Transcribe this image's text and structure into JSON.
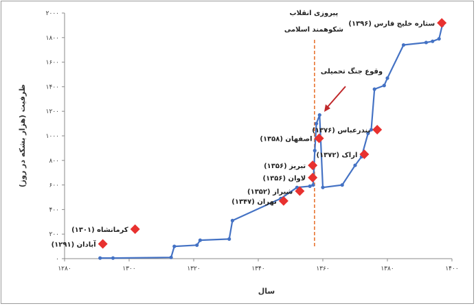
{
  "chart_data": {
    "type": "line",
    "xlabel": "سال",
    "ylabel": "ظرفیت (هزار بشکه در روز)",
    "xlim": [
      1280,
      1400
    ],
    "ylim": [
      0,
      2000
    ],
    "x_ticks": [
      1280,
      1300,
      1320,
      1340,
      1360,
      1380,
      1400
    ],
    "x_tick_labels": [
      "۱۲۸۰",
      "۱۳۰۰",
      "۱۳۲۰",
      "۱۳۴۰",
      "۱۳۶۰",
      "۱۳۸۰",
      "۱۴۰۰"
    ],
    "y_ticks": [
      0,
      200,
      400,
      600,
      800,
      1000,
      1200,
      1400,
      1600,
      1800,
      2000
    ],
    "y_tick_labels": [
      "۰",
      "۲۰۰",
      "۴۰۰",
      "۶۰۰",
      "۸۰۰",
      "۱۰۰۰",
      "۱۲۰۰",
      "۱۴۰۰",
      "۱۶۰۰",
      "۱۸۰۰",
      "۲۰۰۰"
    ],
    "grid": false,
    "line_color": "#4472C4",
    "marker_color": "#E8312F",
    "annotation_color": "#E8732F",
    "series": [
      {
        "x": [
          1291,
          1295,
          1313,
          1314,
          1321,
          1322,
          1331,
          1332,
          1347,
          1352,
          1356,
          1357,
          1357.5,
          1358,
          1359,
          1360,
          1366,
          1370,
          1372,
          1374,
          1375,
          1376,
          1379,
          1380,
          1385,
          1392,
          1394,
          1396,
          1397
        ],
        "y": [
          5,
          5,
          10,
          100,
          110,
          150,
          160,
          310,
          490,
          580,
          590,
          600,
          880,
          1100,
          1170,
          580,
          600,
          760,
          830,
          1020,
          1050,
          1380,
          1410,
          1470,
          1740,
          1760,
          1770,
          1790,
          1900
        ]
      }
    ],
    "markers": [
      {
        "x": 1291,
        "y": 120,
        "label": "آبادان (۱۲۹۱)"
      },
      {
        "x": 1301,
        "y": 240,
        "label": "کرمانشاه (۱۳۰۱)"
      },
      {
        "x": 1347,
        "y": 470,
        "label": "تهران (۱۳۴۷)"
      },
      {
        "x": 1352,
        "y": 550,
        "label": "شیراز (۱۳۵۲)"
      },
      {
        "x": 1356,
        "y": 660,
        "label": "لاوان (۱۳۵۶)"
      },
      {
        "x": 1356,
        "y": 760,
        "label": "تبریز (۱۳۵۶)"
      },
      {
        "x": 1358,
        "y": 980,
        "label": "اصفهان (۱۳۵۸)"
      },
      {
        "x": 1372,
        "y": 850,
        "label": "اراک (۱۳۷۲)"
      },
      {
        "x": 1376,
        "y": 1050,
        "label": "بندرعباس (۱۳۷۶)"
      },
      {
        "x": 1396,
        "y": 1920,
        "label": "ستاره خلیج فارس (۱۳۹۶)"
      }
    ],
    "annotations": [
      {
        "label": "پیروزی انقلاب",
        "x": 1357
      },
      {
        "label": "شکوهمند اسلامی",
        "x": 1357
      },
      {
        "label": "وقوع جنگ تحمیلی",
        "x": 1360
      }
    ]
  }
}
